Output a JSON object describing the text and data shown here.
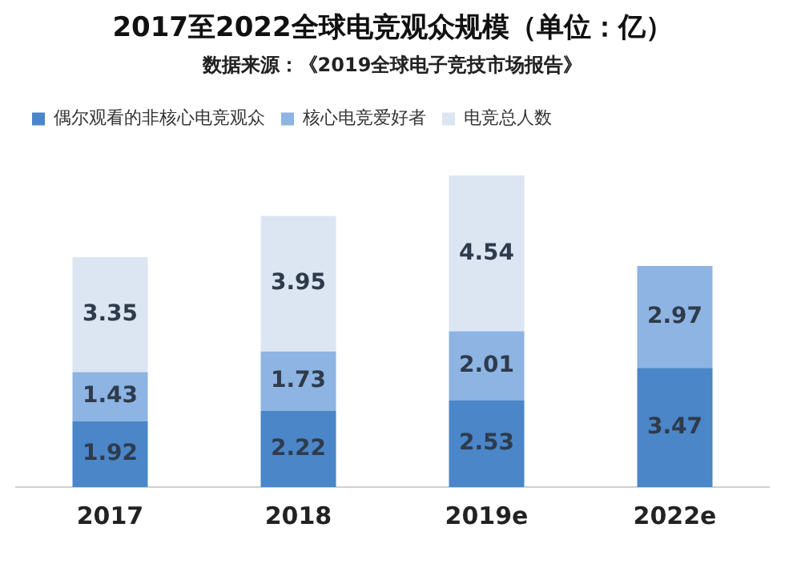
{
  "chart_data": {
    "type": "bar",
    "title": "2017至2022全球电竞观众规模（单位：亿）",
    "subtitle": "数据来源：《2019全球电子竞技市场报告》",
    "categories": [
      "2017",
      "2018",
      "2019e",
      "2022e"
    ],
    "stacked": true,
    "data_labels": true,
    "legend": "top left",
    "tick_labels": "x",
    "grid": false,
    "series": [
      {
        "name": "偶尔观看的非核心电竞观众",
        "color": "#4a86c8",
        "values": [
          1.92,
          2.22,
          2.53,
          3.47
        ]
      },
      {
        "name": "核心电竞爱好者",
        "color": "#8db4e2",
        "values": [
          1.43,
          1.73,
          2.01,
          2.97
        ]
      },
      {
        "name": "电竞总人数",
        "color": "#dce6f2",
        "values": [
          3.35,
          3.95,
          4.54,
          null
        ]
      }
    ]
  }
}
